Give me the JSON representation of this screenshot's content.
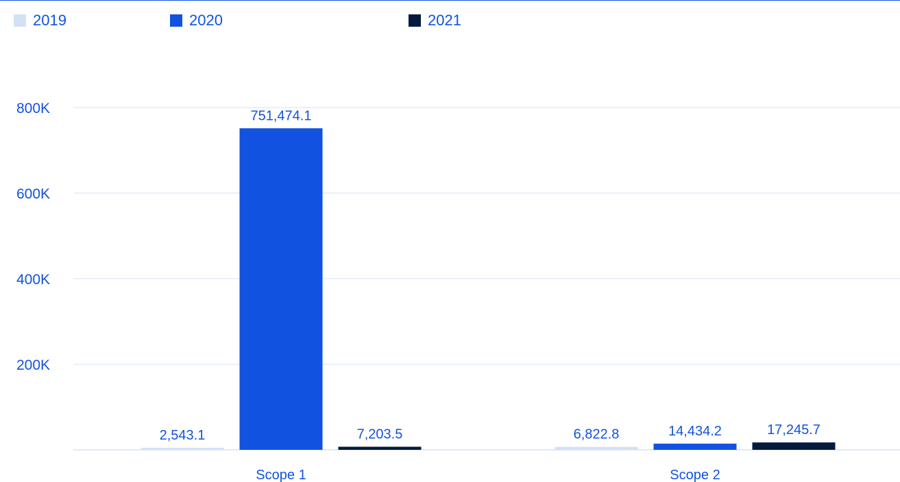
{
  "legend": [
    {
      "label": "2019",
      "color": "#d4e1f4"
    },
    {
      "label": "2020",
      "color": "#1152e0"
    },
    {
      "label": "2021",
      "color": "#061a3e"
    }
  ],
  "chart_data": {
    "type": "bar",
    "title": "",
    "xlabel": "",
    "ylabel": "",
    "categories": [
      "Scope 1",
      "Scope 2"
    ],
    "series": [
      {
        "name": "2019",
        "values": [
          2543.1,
          6822.8
        ],
        "labels": [
          "2,543.1",
          "6,822.8"
        ],
        "color": "#d4e1f4"
      },
      {
        "name": "2020",
        "values": [
          751474.1,
          14434.2
        ],
        "labels": [
          "751,474.1",
          "14,434.2"
        ],
        "color": "#1152e0"
      },
      {
        "name": "2021",
        "values": [
          7203.5,
          17245.7
        ],
        "labels": [
          "7,203.5",
          "17,245.7"
        ],
        "color": "#061a3e"
      }
    ],
    "yticks": [
      {
        "value": 200000,
        "label": "200K"
      },
      {
        "value": 400000,
        "label": "400K"
      },
      {
        "value": 600000,
        "label": "600K"
      },
      {
        "value": 800000,
        "label": "800K"
      }
    ],
    "ylim": [
      0,
      800000
    ],
    "grid": true,
    "legend_position": "top-left",
    "text_color": "#1152e0",
    "grid_color": "#d6e2f3"
  }
}
